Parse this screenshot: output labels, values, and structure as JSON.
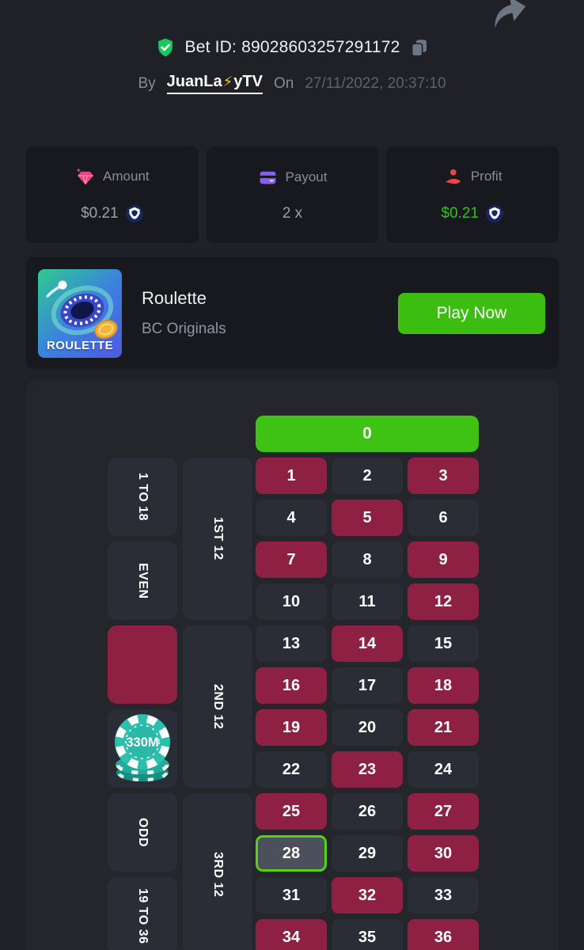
{
  "header": {
    "bet_id": "Bet ID: 89028603257291172",
    "by_label": "By",
    "username_prefix": "JuanLa",
    "username_emoji": "⚡",
    "username_suffix": "yTV",
    "on_label": "On",
    "datetime": "27/11/2022, 20:37:10"
  },
  "stats": {
    "amount": {
      "label": "Amount",
      "value": "$0.21"
    },
    "payout": {
      "label": "Payout",
      "value": "2 x"
    },
    "profit": {
      "label": "Profit",
      "value": "$0.21"
    }
  },
  "game": {
    "title": "Roulette",
    "provider": "BC Originals",
    "play_button": "Play Now",
    "thumb_label": "ROULETTE"
  },
  "table": {
    "zero_label": "0",
    "red_numbers": [
      1,
      3,
      5,
      7,
      9,
      12,
      14,
      16,
      18,
      19,
      21,
      23,
      25,
      27,
      30,
      32,
      34,
      36
    ],
    "winning_number": 28,
    "chip_label": "330M",
    "outside_bets": {
      "low": "1 TO 18",
      "even": "EVEN",
      "odd": "ODD",
      "high": "19 TO 36"
    },
    "dozens": [
      "1ST 12",
      "2ND 12",
      "3RD 12"
    ]
  },
  "colors": {
    "page_bg": "#1f2126",
    "card_bg": "#17191f",
    "panel_bg": "#24262c",
    "dark_cell": "#2a2d36",
    "red_cell": "#8e2044",
    "zero_green": "#3ec314",
    "play_green": "#3bbd12",
    "win_cell_bg": "#4b505c",
    "win_border": "#56d119",
    "profit_green": "#33c116",
    "chip_teal": "#2dbfae",
    "payout_purple": "#8a5cf6",
    "amount_pink": "#f4407f",
    "profit_red": "#ee4444",
    "coin_blue": "#15275e"
  }
}
